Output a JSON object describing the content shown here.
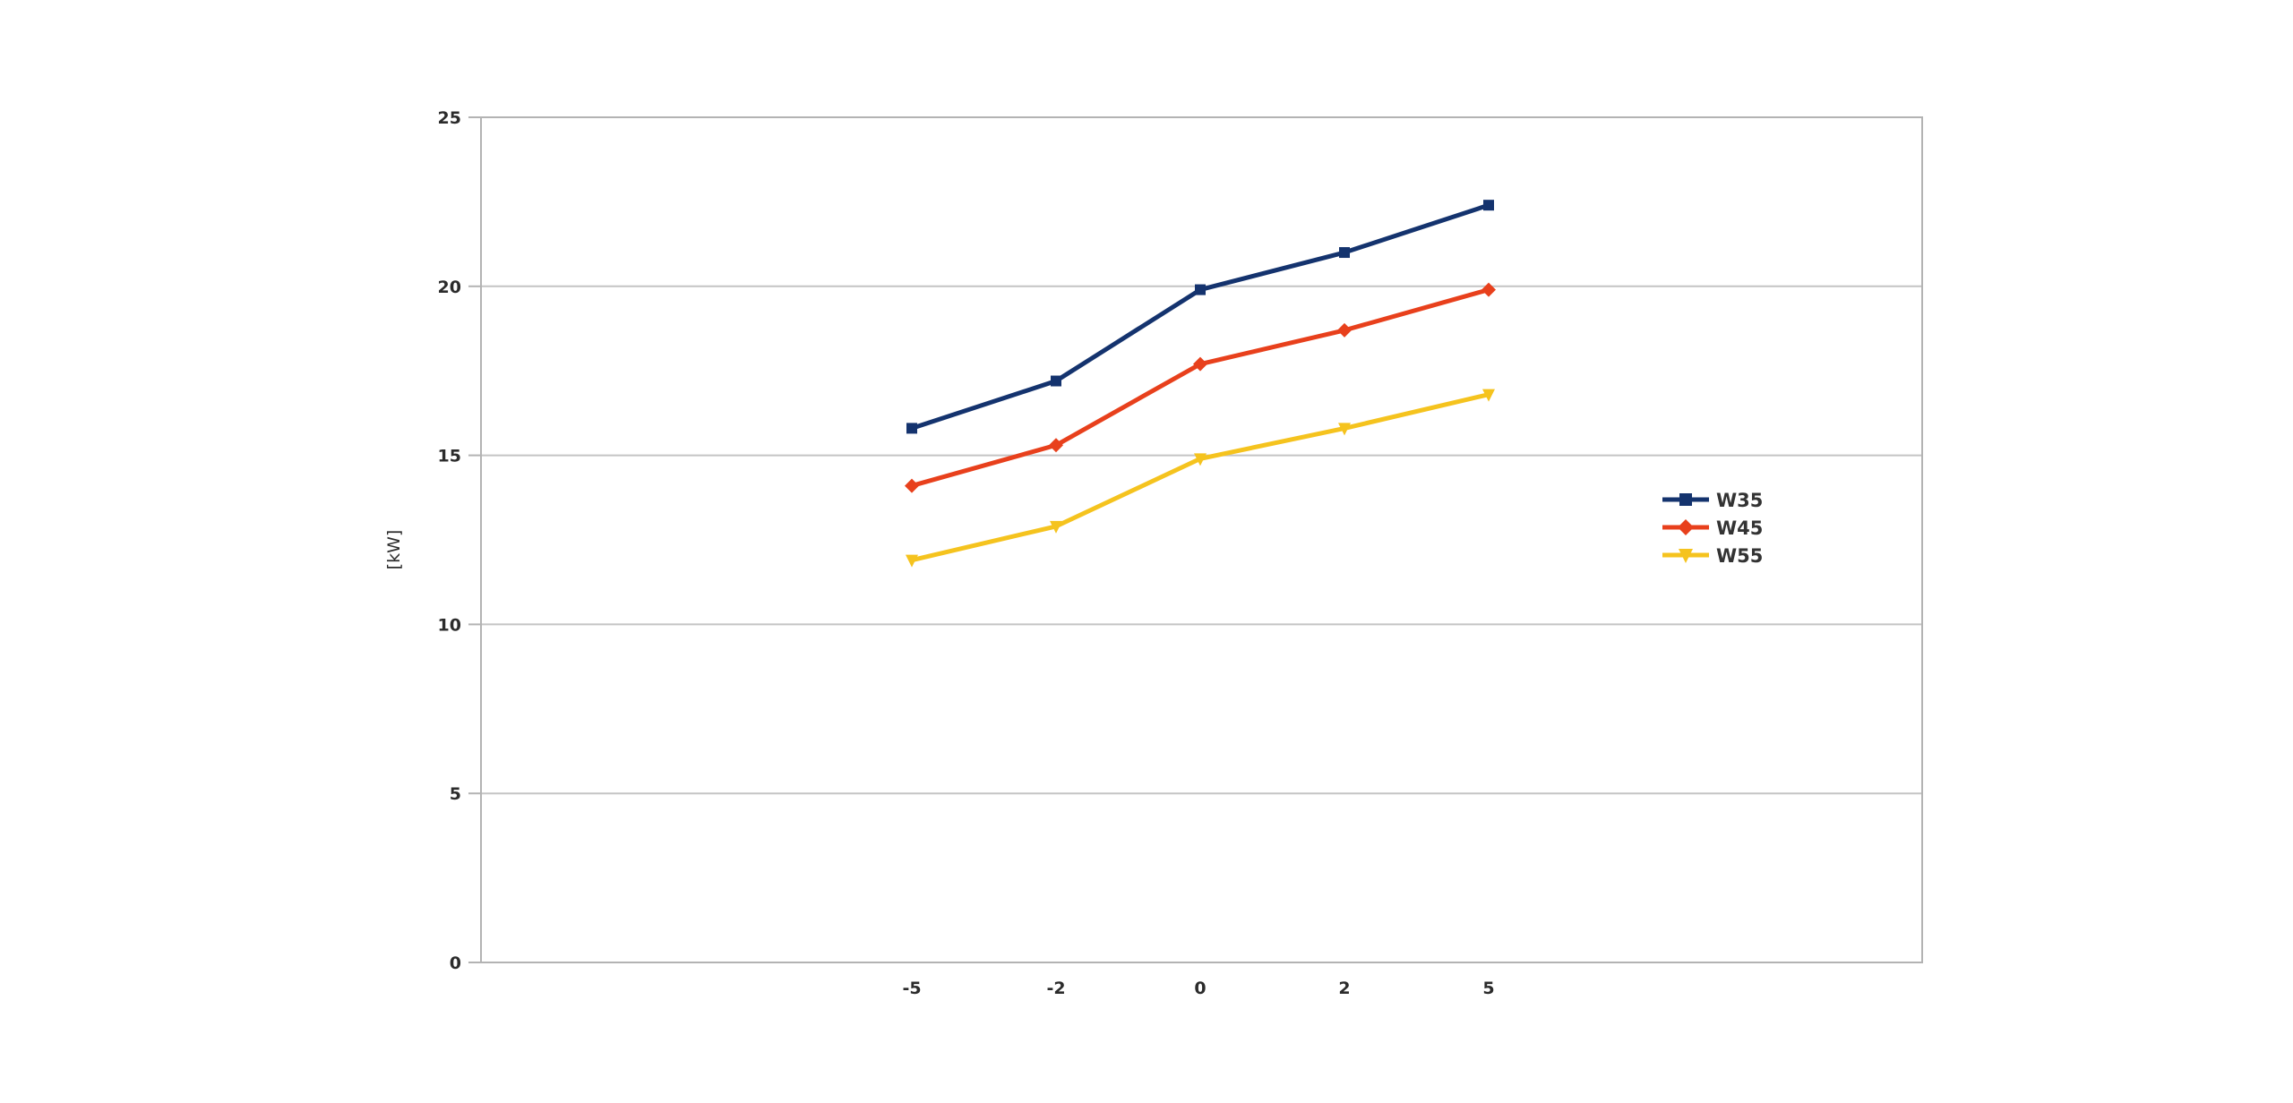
{
  "chart_data": {
    "type": "line",
    "title": "",
    "xlabel": "",
    "ylabel": "[kW]",
    "categories": [
      "-5",
      "-2",
      "0",
      "2",
      "5"
    ],
    "ylim": [
      0,
      25
    ],
    "yticks": [
      0,
      5,
      10,
      15,
      20,
      25
    ],
    "grid": "horizontal",
    "legend_position": "right",
    "series": [
      {
        "name": "W35",
        "color": "#14336e",
        "marker": "square",
        "values": [
          15.8,
          17.2,
          19.9,
          21.0,
          22.4
        ]
      },
      {
        "name": "W45",
        "color": "#e8401c",
        "marker": "diamond",
        "values": [
          14.1,
          15.3,
          17.7,
          18.7,
          19.9
        ]
      },
      {
        "name": "W55",
        "color": "#f5c31e",
        "marker": "triangle-down",
        "values": [
          11.9,
          12.9,
          14.9,
          15.8,
          16.8
        ]
      }
    ]
  }
}
